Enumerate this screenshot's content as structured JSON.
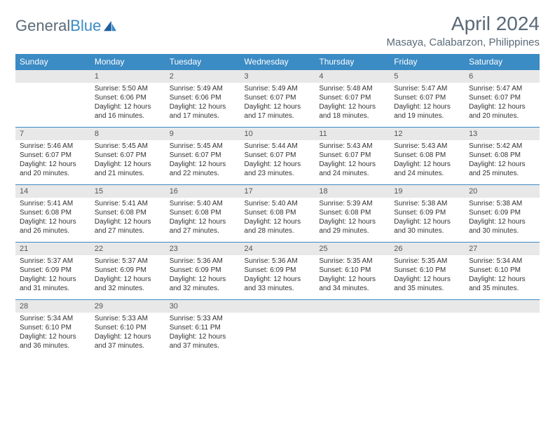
{
  "brand": {
    "part1": "General",
    "part2": "Blue"
  },
  "title": "April 2024",
  "location": "Masaya, Calabarzon, Philippines",
  "colors": {
    "header_bg": "#3b8bc4",
    "header_text": "#ffffff",
    "daynum_bg": "#e8e8e8",
    "daynum_border": "#3b8bc4",
    "text": "#333333",
    "muted": "#5a6a78"
  },
  "day_labels": [
    "Sunday",
    "Monday",
    "Tuesday",
    "Wednesday",
    "Thursday",
    "Friday",
    "Saturday"
  ],
  "weeks": [
    [
      null,
      {
        "n": "1",
        "sr": "5:50 AM",
        "ss": "6:06 PM",
        "dl": "12 hours and 16 minutes."
      },
      {
        "n": "2",
        "sr": "5:49 AM",
        "ss": "6:06 PM",
        "dl": "12 hours and 17 minutes."
      },
      {
        "n": "3",
        "sr": "5:49 AM",
        "ss": "6:07 PM",
        "dl": "12 hours and 17 minutes."
      },
      {
        "n": "4",
        "sr": "5:48 AM",
        "ss": "6:07 PM",
        "dl": "12 hours and 18 minutes."
      },
      {
        "n": "5",
        "sr": "5:47 AM",
        "ss": "6:07 PM",
        "dl": "12 hours and 19 minutes."
      },
      {
        "n": "6",
        "sr": "5:47 AM",
        "ss": "6:07 PM",
        "dl": "12 hours and 20 minutes."
      }
    ],
    [
      {
        "n": "7",
        "sr": "5:46 AM",
        "ss": "6:07 PM",
        "dl": "12 hours and 20 minutes."
      },
      {
        "n": "8",
        "sr": "5:45 AM",
        "ss": "6:07 PM",
        "dl": "12 hours and 21 minutes."
      },
      {
        "n": "9",
        "sr": "5:45 AM",
        "ss": "6:07 PM",
        "dl": "12 hours and 22 minutes."
      },
      {
        "n": "10",
        "sr": "5:44 AM",
        "ss": "6:07 PM",
        "dl": "12 hours and 23 minutes."
      },
      {
        "n": "11",
        "sr": "5:43 AM",
        "ss": "6:07 PM",
        "dl": "12 hours and 24 minutes."
      },
      {
        "n": "12",
        "sr": "5:43 AM",
        "ss": "6:08 PM",
        "dl": "12 hours and 24 minutes."
      },
      {
        "n": "13",
        "sr": "5:42 AM",
        "ss": "6:08 PM",
        "dl": "12 hours and 25 minutes."
      }
    ],
    [
      {
        "n": "14",
        "sr": "5:41 AM",
        "ss": "6:08 PM",
        "dl": "12 hours and 26 minutes."
      },
      {
        "n": "15",
        "sr": "5:41 AM",
        "ss": "6:08 PM",
        "dl": "12 hours and 27 minutes."
      },
      {
        "n": "16",
        "sr": "5:40 AM",
        "ss": "6:08 PM",
        "dl": "12 hours and 27 minutes."
      },
      {
        "n": "17",
        "sr": "5:40 AM",
        "ss": "6:08 PM",
        "dl": "12 hours and 28 minutes."
      },
      {
        "n": "18",
        "sr": "5:39 AM",
        "ss": "6:08 PM",
        "dl": "12 hours and 29 minutes."
      },
      {
        "n": "19",
        "sr": "5:38 AM",
        "ss": "6:09 PM",
        "dl": "12 hours and 30 minutes."
      },
      {
        "n": "20",
        "sr": "5:38 AM",
        "ss": "6:09 PM",
        "dl": "12 hours and 30 minutes."
      }
    ],
    [
      {
        "n": "21",
        "sr": "5:37 AM",
        "ss": "6:09 PM",
        "dl": "12 hours and 31 minutes."
      },
      {
        "n": "22",
        "sr": "5:37 AM",
        "ss": "6:09 PM",
        "dl": "12 hours and 32 minutes."
      },
      {
        "n": "23",
        "sr": "5:36 AM",
        "ss": "6:09 PM",
        "dl": "12 hours and 32 minutes."
      },
      {
        "n": "24",
        "sr": "5:36 AM",
        "ss": "6:09 PM",
        "dl": "12 hours and 33 minutes."
      },
      {
        "n": "25",
        "sr": "5:35 AM",
        "ss": "6:10 PM",
        "dl": "12 hours and 34 minutes."
      },
      {
        "n": "26",
        "sr": "5:35 AM",
        "ss": "6:10 PM",
        "dl": "12 hours and 35 minutes."
      },
      {
        "n": "27",
        "sr": "5:34 AM",
        "ss": "6:10 PM",
        "dl": "12 hours and 35 minutes."
      }
    ],
    [
      {
        "n": "28",
        "sr": "5:34 AM",
        "ss": "6:10 PM",
        "dl": "12 hours and 36 minutes."
      },
      {
        "n": "29",
        "sr": "5:33 AM",
        "ss": "6:10 PM",
        "dl": "12 hours and 37 minutes."
      },
      {
        "n": "30",
        "sr": "5:33 AM",
        "ss": "6:11 PM",
        "dl": "12 hours and 37 minutes."
      },
      null,
      null,
      null,
      null
    ]
  ],
  "labels": {
    "sunrise": "Sunrise:",
    "sunset": "Sunset:",
    "daylight": "Daylight:"
  }
}
